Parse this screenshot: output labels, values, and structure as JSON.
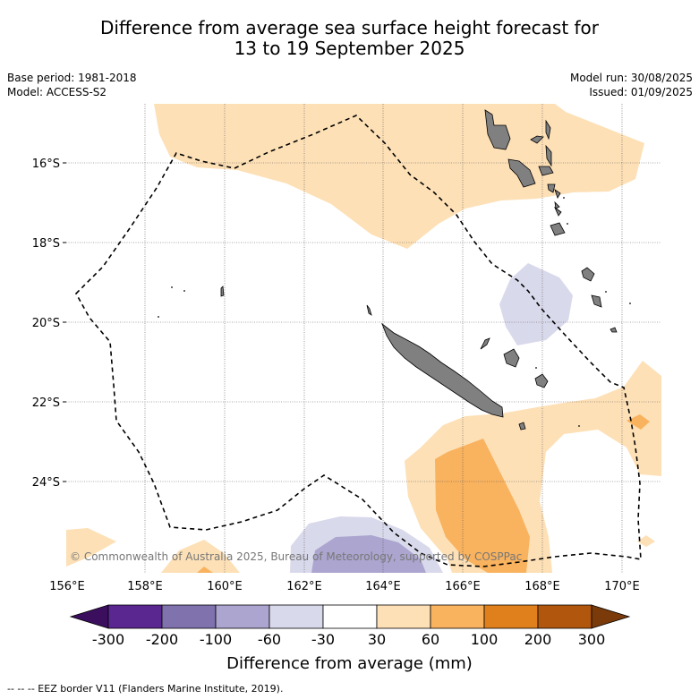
{
  "title_line1": "Difference from average sea surface height forecast for",
  "title_line2": "13 to 19 September 2025",
  "meta": {
    "base_period": "Base period: 1981-2018",
    "model": "Model: ACCESS-S2",
    "model_run": "Model run: 30/08/2025",
    "issued": "Issued: 01/09/2025"
  },
  "credit": "© Commonwealth of Australia 2025, Bureau of Meteorology, supported by COSPPac",
  "lon_labels": [
    "156°E",
    "158°E",
    "160°E",
    "162°E",
    "164°E",
    "166°E",
    "168°E",
    "170°E"
  ],
  "lat_labels": [
    "16°S",
    "18°S",
    "20°S",
    "22°S",
    "24°S"
  ],
  "colorbar": {
    "title": "Difference from average (mm)",
    "ticks": [
      "-300",
      "-200",
      "-100",
      "-60",
      "-30",
      "30",
      "60",
      "100",
      "200",
      "300"
    ],
    "colors": [
      "#3b0f5e",
      "#5a2690",
      "#7f72ad",
      "#aba5cf",
      "#d9d9ec",
      "#ffffff",
      "#fde0b6",
      "#f9b25e",
      "#e0801d",
      "#b0560d",
      "#7a3a09"
    ]
  },
  "legend_text": "--  --  -- EEZ border V11 (Flanders Marine Institute, 2019).",
  "colors": {
    "land": "#808080",
    "pos_light": "#fde0b6",
    "pos_mid": "#f9b25e",
    "neg_light": "#d9d9ec",
    "neg_mid": "#aba5cf"
  }
}
